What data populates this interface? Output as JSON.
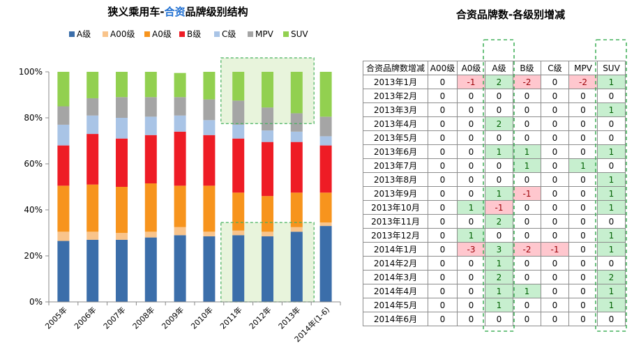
{
  "chart_data": {
    "type": "bar",
    "stacked": true,
    "percent": true,
    "title_parts": [
      "狭义乘用车-",
      "合资",
      "品牌级别结构"
    ],
    "categories": [
      "2005年",
      "2006年",
      "2007年",
      "2008年",
      "2009年",
      "2010年",
      "2011年",
      "2012年",
      "2013年",
      "2014年(1-6)"
    ],
    "ylim": [
      0,
      100
    ],
    "yticks": [
      "0%",
      "20%",
      "40%",
      "60%",
      "80%",
      "100%"
    ],
    "legend_position": "top",
    "series": [
      {
        "name": "A级",
        "color": "#3b6eaa",
        "values": [
          26.5,
          27,
          27,
          28,
          29,
          28.5,
          29,
          28.5,
          30.5,
          33
        ]
      },
      {
        "name": "A00级",
        "color": "#f9c48b",
        "values": [
          4,
          3.5,
          3,
          2.5,
          3.5,
          2,
          2,
          2,
          2,
          1.5
        ]
      },
      {
        "name": "A0级",
        "color": "#f7941d",
        "values": [
          20,
          20.5,
          20,
          21,
          18,
          20,
          16.5,
          15.5,
          15,
          13
        ]
      },
      {
        "name": "B级",
        "color": "#ee1c25",
        "values": [
          17.5,
          22,
          21,
          21,
          23.5,
          22,
          23.5,
          23.5,
          22,
          20.5
        ]
      },
      {
        "name": "C级",
        "color": "#a9c4e6",
        "values": [
          9,
          8,
          9,
          8,
          7,
          6.5,
          6,
          5,
          4.5,
          4
        ]
      },
      {
        "name": "MPV",
        "color": "#a5a5a5",
        "values": [
          8,
          7.5,
          9,
          8.5,
          8,
          9,
          10.5,
          10,
          8,
          8.5
        ]
      },
      {
        "name": "SUV",
        "color": "#92d050",
        "values": [
          15,
          11.5,
          11,
          11,
          10.5,
          12,
          12.5,
          15.5,
          18,
          19.5
        ]
      }
    ]
  },
  "table": {
    "title": "合资品牌数-各级别增减",
    "columns": [
      "合资品牌数增减",
      "A00级",
      "A0级",
      "A级",
      "B级",
      "C级",
      "MPV",
      "SUV"
    ],
    "rows": [
      {
        "label": "2013年1月",
        "values": [
          "0",
          "-1",
          "2",
          "-2",
          "0",
          "-2",
          "1"
        ]
      },
      {
        "label": "2013年2月",
        "values": [
          "0",
          "0",
          "0",
          "0",
          "0",
          "0",
          "0"
        ]
      },
      {
        "label": "2013年3月",
        "values": [
          "0",
          "0",
          "0",
          "0",
          "0",
          "0",
          "1"
        ]
      },
      {
        "label": "2013年4月",
        "values": [
          "0",
          "0",
          "2",
          "0",
          "0",
          "0",
          "0"
        ]
      },
      {
        "label": "2013年5月",
        "values": [
          "0",
          "0",
          "0",
          "0",
          "0",
          "0",
          "0"
        ]
      },
      {
        "label": "2013年6月",
        "values": [
          "0",
          "0",
          "1",
          "1",
          "0",
          "0",
          "1"
        ]
      },
      {
        "label": "2013年7月",
        "values": [
          "0",
          "0",
          "0",
          "1",
          "0",
          "1",
          "0"
        ]
      },
      {
        "label": "2013年8月",
        "values": [
          "0",
          "0",
          "0",
          "0",
          "0",
          "0",
          "1"
        ]
      },
      {
        "label": "2013年9月",
        "values": [
          "0",
          "0",
          "1",
          "-1",
          "0",
          "0",
          "1"
        ]
      },
      {
        "label": "2013年10月",
        "values": [
          "0",
          "1",
          "-1",
          "0",
          "0",
          "0",
          "1"
        ]
      },
      {
        "label": "2013年11月",
        "values": [
          "0",
          "0",
          "2",
          "0",
          "0",
          "0",
          "0"
        ]
      },
      {
        "label": "2013年12月",
        "values": [
          "0",
          "1",
          "0",
          "0",
          "0",
          "0",
          "1"
        ]
      },
      {
        "label": "2014年1月",
        "values": [
          "0",
          "-3",
          "3",
          "-2",
          "-1",
          "0",
          "1"
        ]
      },
      {
        "label": "2014年2月",
        "values": [
          "0",
          "0",
          "1",
          "0",
          "0",
          "0",
          "0"
        ]
      },
      {
        "label": "2014年3月",
        "values": [
          "0",
          "0",
          "2",
          "0",
          "0",
          "0",
          "2"
        ]
      },
      {
        "label": "2014年4月",
        "values": [
          "0",
          "0",
          "1",
          "1",
          "0",
          "0",
          "1"
        ]
      },
      {
        "label": "2014年5月",
        "values": [
          "0",
          "0",
          "1",
          "0",
          "0",
          "0",
          "1"
        ]
      },
      {
        "label": "2014年6月",
        "values": [
          "0",
          "0",
          "0",
          "0",
          "0",
          "0",
          "0"
        ]
      }
    ]
  },
  "colors": {
    "title_accent": "#1f6fd1",
    "positive_fill": "#c7efcf",
    "negative_fill": "#ffc7ce",
    "highlight_fill": "#e8f4dc",
    "highlight_border": "#44b05c"
  }
}
